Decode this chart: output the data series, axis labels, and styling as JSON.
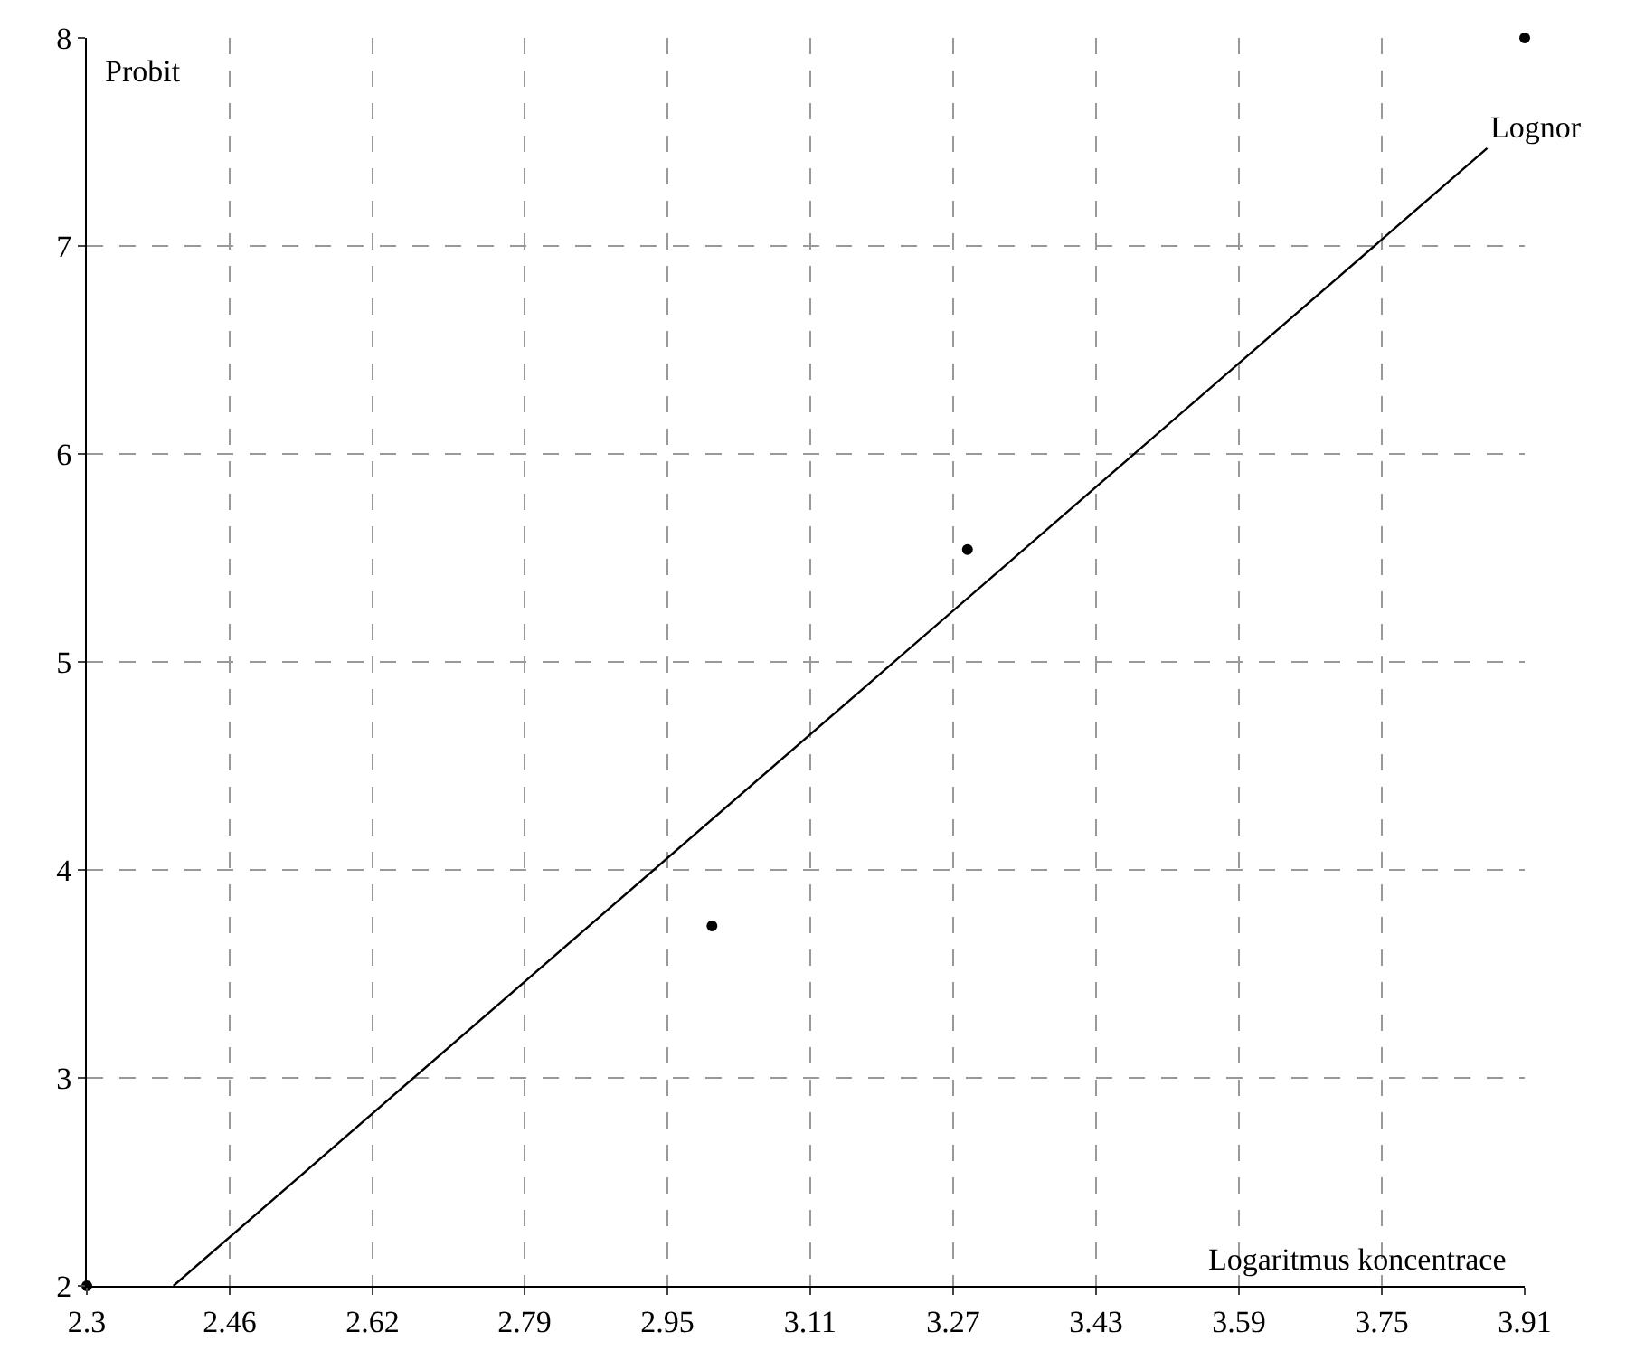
{
  "chart_data": {
    "type": "scatter",
    "xlabel": "Logaritmus koncentrace",
    "ylabel": "Probit",
    "series": [
      {
        "color": "#000000",
        "x": [
          2.3,
          3.0,
          3.286,
          3.91
        ],
        "values": [
          2,
          3.73,
          5.54,
          8
        ],
        "marker": "circle"
      },
      {
        "type": "line",
        "name": "Lognor",
        "color": "#000000",
        "x": [
          2.397,
          3.868
        ],
        "values": [
          2,
          7.47
        ],
        "marker": "none"
      }
    ],
    "xlim": [
      2.3,
      3.91
    ],
    "ylim": [
      2,
      8
    ],
    "xticks": [
      2.3,
      2.46,
      2.62,
      2.79,
      2.95,
      3.11,
      3.27,
      3.43,
      3.59,
      3.75,
      3.91
    ],
    "yticks": [
      2,
      3,
      4,
      5,
      6,
      7,
      8
    ],
    "grid": true,
    "line_style": "solid"
  }
}
